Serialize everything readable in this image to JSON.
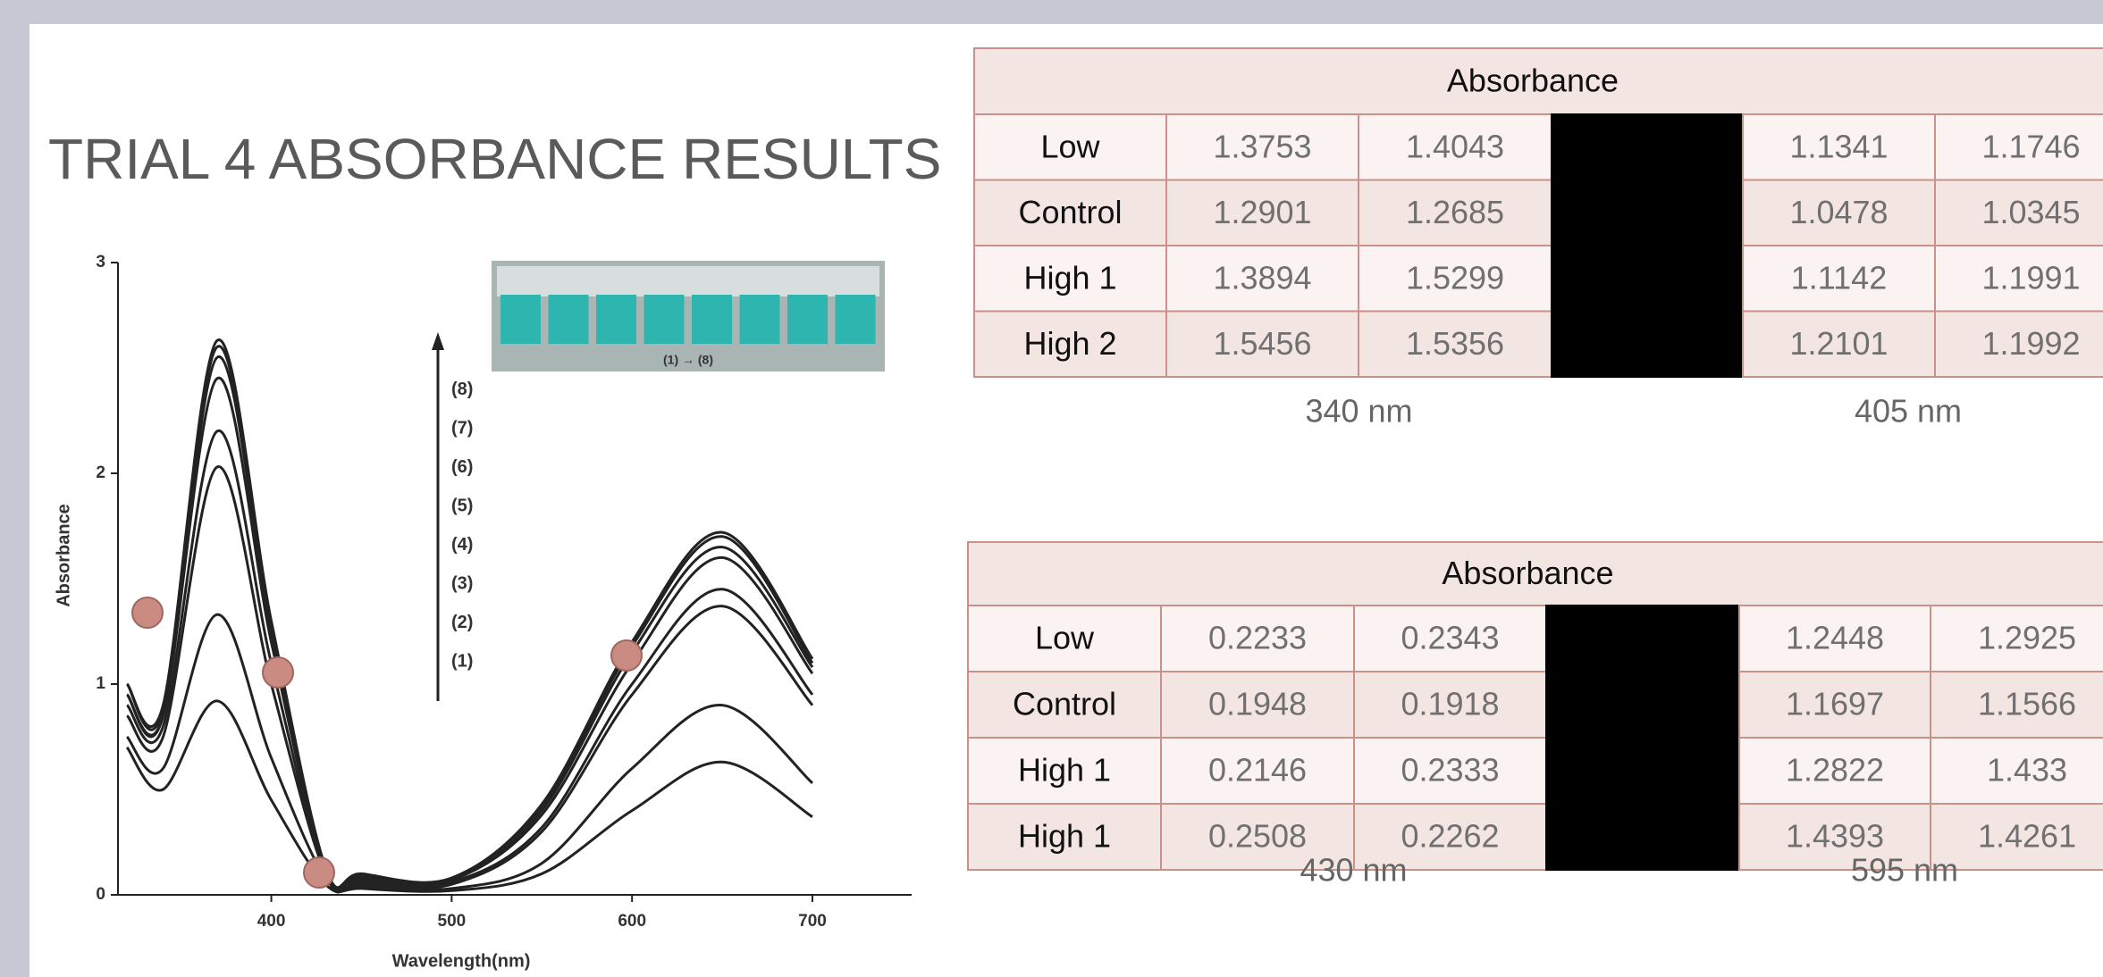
{
  "title": "TRIAL 4 ABSORBANCE RESULTS",
  "chart_data": {
    "type": "line",
    "xlabel": "Wavelength(nm)",
    "ylabel": "Absorbance",
    "x": [
      320,
      340,
      370,
      400,
      430,
      450,
      500,
      550,
      600,
      650,
      700
    ],
    "series": [
      {
        "name": "(1)",
        "color": "#222222",
        "values": [
          0.7,
          0.5,
          0.92,
          0.45,
          0.05,
          0.03,
          0.02,
          0.1,
          0.4,
          0.63,
          0.37
        ]
      },
      {
        "name": "(2)",
        "color": "#222222",
        "values": [
          0.75,
          0.6,
          1.33,
          0.65,
          0.08,
          0.04,
          0.03,
          0.15,
          0.6,
          0.9,
          0.53
        ]
      },
      {
        "name": "(3)",
        "color": "#222222",
        "values": [
          0.85,
          0.75,
          2.03,
          1.0,
          0.1,
          0.05,
          0.05,
          0.3,
          0.95,
          1.37,
          0.9
        ]
      },
      {
        "name": "(4)",
        "color": "#222222",
        "values": [
          0.9,
          0.8,
          2.2,
          1.1,
          0.1,
          0.06,
          0.06,
          0.32,
          1.0,
          1.45,
          0.95
        ]
      },
      {
        "name": "(5)",
        "color": "#222222",
        "values": [
          0.95,
          0.85,
          2.45,
          1.2,
          0.12,
          0.07,
          0.07,
          0.38,
          1.1,
          1.6,
          1.05
        ]
      },
      {
        "name": "(6)",
        "color": "#222222",
        "values": [
          0.95,
          0.85,
          2.55,
          1.25,
          0.12,
          0.08,
          0.07,
          0.4,
          1.15,
          1.65,
          1.08
        ]
      },
      {
        "name": "(7)",
        "color": "#222222",
        "values": [
          1.0,
          0.88,
          2.6,
          1.28,
          0.13,
          0.09,
          0.08,
          0.42,
          1.18,
          1.7,
          1.1
        ]
      },
      {
        "name": "(8)",
        "color": "#222222",
        "values": [
          1.0,
          0.9,
          2.63,
          1.3,
          0.13,
          0.1,
          0.08,
          0.43,
          1.2,
          1.72,
          1.12
        ]
      }
    ],
    "xlim": [
      315,
      755
    ],
    "ylim": [
      0,
      3
    ],
    "xticks": [
      400,
      500,
      600,
      700
    ],
    "yticks": [
      0,
      1,
      2,
      3
    ],
    "inset_caption": "(1) → (8)"
  },
  "tables": [
    {
      "header": "Absorbance",
      "rows": [
        [
          "Low",
          1.3753,
          1.4043,
          1.1341,
          1.1746
        ],
        [
          "Control",
          1.2901,
          1.2685,
          1.0478,
          1.0345
        ],
        [
          "High 1",
          1.3894,
          1.5299,
          1.1142,
          1.1991
        ],
        [
          "High 2",
          1.5456,
          1.5356,
          1.2101,
          1.1992
        ]
      ],
      "footers": [
        "340 nm",
        "405 nm"
      ]
    },
    {
      "header": "Absorbance",
      "rows": [
        [
          "Low",
          0.2233,
          0.2343,
          1.2448,
          1.2925
        ],
        [
          "Control",
          0.1948,
          0.1918,
          1.1697,
          1.1566
        ],
        [
          "High 1",
          0.2146,
          0.2333,
          1.2822,
          1.433
        ],
        [
          "High 1",
          0.2508,
          0.2262,
          1.4393,
          1.4261
        ]
      ],
      "footers": [
        "430 nm",
        "595 nm"
      ]
    }
  ]
}
